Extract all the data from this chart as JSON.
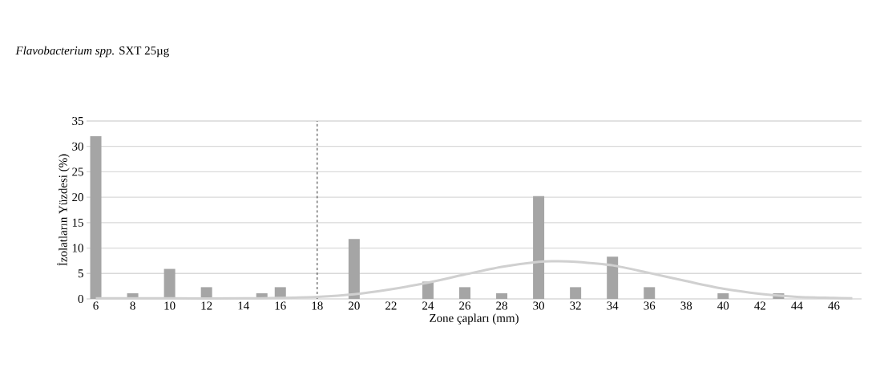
{
  "chart_data": {
    "type": "bar",
    "title": "*Flavobacterium spp.*  SXT 25µg",
    "xlabel": "Zone çapları (mm)",
    "ylabel": "İzolatların Yüzdesi  (%)",
    "xlim": [
      5.5,
      47.5
    ],
    "xticks": [
      6,
      8,
      10,
      12,
      14,
      16,
      18,
      20,
      22,
      24,
      26,
      28,
      30,
      32,
      34,
      36,
      38,
      40,
      42,
      44,
      46
    ],
    "ylim": [
      0,
      35
    ],
    "yticks": [
      0,
      5,
      10,
      15,
      20,
      25,
      30,
      35
    ],
    "grid": "y",
    "ref_lines": [
      {
        "axis": "x",
        "value": 18,
        "color": "#000000",
        "line_style": "dashed"
      }
    ],
    "series": [
      {
        "color": "#a5a5a5",
        "x": [
          6,
          8,
          10,
          12,
          15,
          16,
          20,
          24,
          26,
          28,
          30,
          32,
          34,
          36,
          40,
          43
        ],
        "values": [
          32.0,
          1.1,
          5.9,
          2.3,
          1.1,
          2.3,
          11.8,
          3.4,
          2.3,
          1.1,
          20.2,
          2.3,
          8.3,
          2.3,
          1.1,
          1.1
        ]
      },
      {
        "type": "line",
        "color": "#d0d0d0",
        "marker": "none",
        "x": [
          6,
          10,
          14,
          16,
          18,
          20,
          22,
          24,
          26,
          28,
          30,
          31,
          32,
          34,
          36,
          38,
          40,
          42,
          44,
          46,
          47
        ],
        "values": [
          0.1,
          0.1,
          0.1,
          0.2,
          0.4,
          0.9,
          1.9,
          3.2,
          4.8,
          6.3,
          7.3,
          7.4,
          7.3,
          6.6,
          5.1,
          3.5,
          2.0,
          1.0,
          0.4,
          0.2,
          0.1
        ]
      }
    ]
  }
}
